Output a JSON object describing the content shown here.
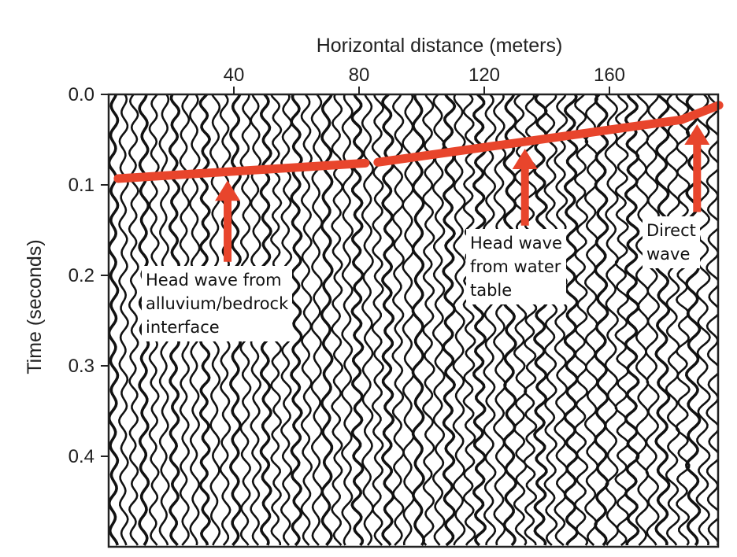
{
  "chart_data": {
    "type": "seismogram",
    "xlabel": "Horizontal distance (meters)",
    "ylabel": "Time (seconds)",
    "xlim": [
      0,
      195
    ],
    "ylim": [
      0.0,
      0.5
    ],
    "x_ticks": [
      {
        "value": 40,
        "label": "40"
      },
      {
        "value": 80,
        "label": "80"
      },
      {
        "value": 120,
        "label": "120"
      },
      {
        "value": 160,
        "label": "160"
      }
    ],
    "y_ticks": [
      {
        "value": 0.0,
        "label": "0.0"
      },
      {
        "value": 0.1,
        "label": "0.1"
      },
      {
        "value": 0.2,
        "label": "0.2"
      },
      {
        "value": 0.3,
        "label": "0.3"
      },
      {
        "value": 0.4,
        "label": "0.4"
      }
    ],
    "trace_count": 60,
    "trace_color": "#111111",
    "pick_color": "#e8452c",
    "picks": [
      {
        "name": "head-wave-alluvium-bedrock",
        "x": [
          3,
          82
        ],
        "y": [
          0.093,
          0.076
        ]
      },
      {
        "name": "head-wave-water-table",
        "x": [
          86,
          183
        ],
        "y": [
          0.075,
          0.028
        ]
      },
      {
        "name": "direct-wave",
        "x": [
          183,
          195
        ],
        "y": [
          0.028,
          0.012
        ]
      }
    ],
    "annotations": [
      {
        "key": "alluvium",
        "lines": [
          "Head wave from",
          "alluvium/bedrock",
          "interface"
        ],
        "arrow_x": 38,
        "arrow_tip_y": 0.095,
        "arrow_base_y": 0.185
      },
      {
        "key": "water_table",
        "lines": [
          "Head wave",
          "from water",
          "table"
        ],
        "arrow_x": 133,
        "arrow_tip_y": 0.06,
        "arrow_base_y": 0.145
      },
      {
        "key": "direct",
        "lines": [
          "Direct",
          "wave"
        ],
        "arrow_x": 188,
        "arrow_tip_y": 0.033,
        "arrow_base_y": 0.13
      }
    ]
  }
}
